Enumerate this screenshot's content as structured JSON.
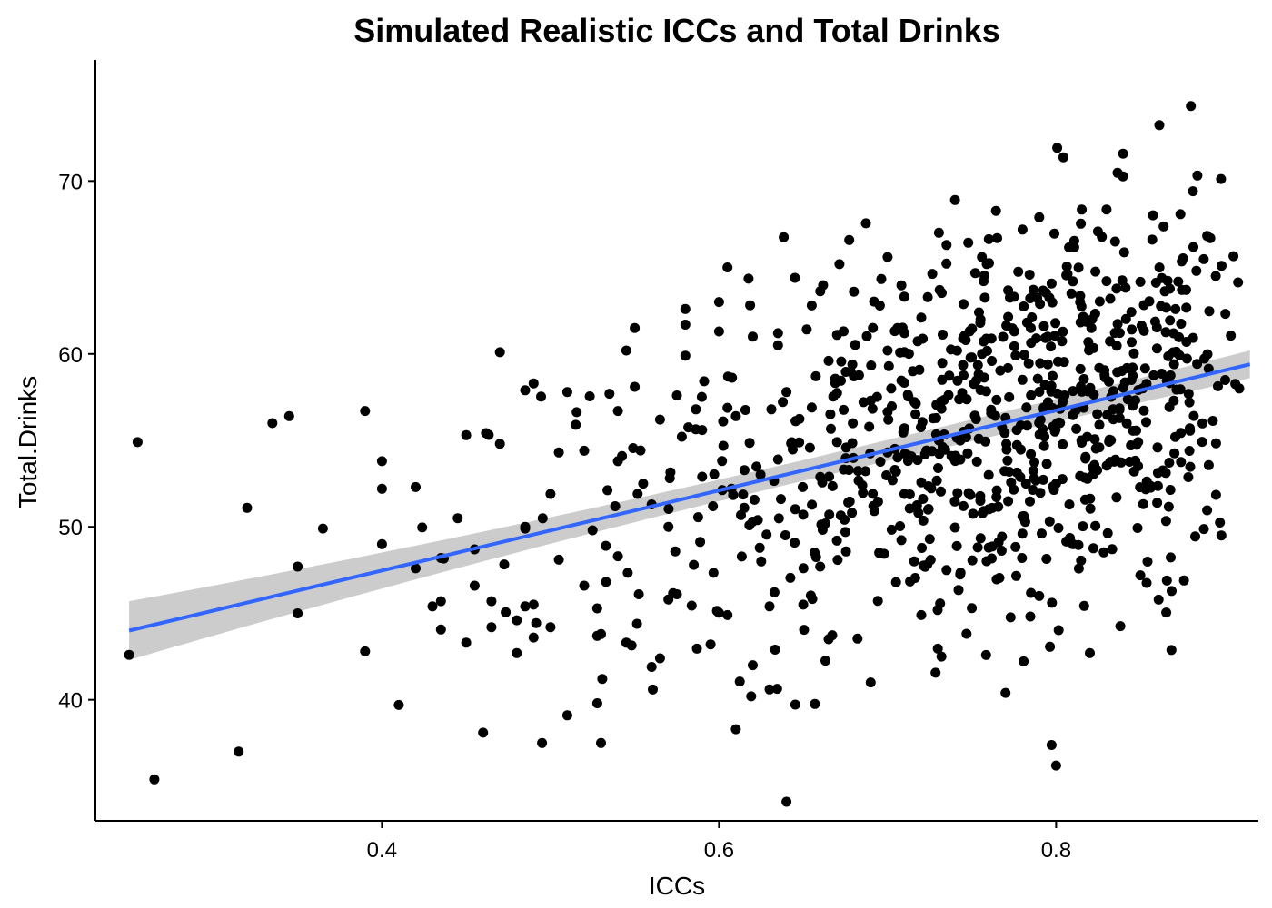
{
  "chart_data": {
    "type": "scatter",
    "title": "Simulated Realistic ICCs and Total Drinks",
    "xlabel": "ICCs",
    "ylabel": "Total.Drinks",
    "xlim": [
      0.23,
      0.92
    ],
    "ylim": [
      33,
      77
    ],
    "x_ticks": [
      {
        "value": 0.4,
        "label": "0.4"
      },
      {
        "value": 0.6,
        "label": "0.6"
      },
      {
        "value": 0.8,
        "label": "0.8"
      }
    ],
    "y_ticks": [
      {
        "value": 40,
        "label": "40"
      },
      {
        "value": 50,
        "label": "50"
      },
      {
        "value": 60,
        "label": "60"
      },
      {
        "value": 70,
        "label": "70"
      }
    ],
    "grid": false,
    "legend": "none",
    "point_color": "#000000",
    "fit_line": {
      "method": "linear regression with 95% CI",
      "color": "#3366ff",
      "band_color": "#cccccc",
      "x": [
        0.25,
        0.915
      ],
      "y": [
        44.0,
        59.4
      ],
      "ci_lower": [
        42.3,
        58.6
      ],
      "ci_upper": [
        45.7,
        60.2
      ],
      "ci_at_center": 0.6
    },
    "n_points": 900,
    "points": [
      [
        0.25,
        42.6
      ],
      [
        0.255,
        54.9
      ],
      [
        0.265,
        35.4
      ],
      [
        0.315,
        37.0
      ],
      [
        0.32,
        51.1
      ],
      [
        0.335,
        56.0
      ],
      [
        0.345,
        56.4
      ],
      [
        0.35,
        45.0
      ],
      [
        0.35,
        47.7
      ],
      [
        0.365,
        49.9
      ],
      [
        0.39,
        56.7
      ],
      [
        0.39,
        42.8
      ],
      [
        0.4,
        52.2
      ],
      [
        0.4,
        53.8
      ],
      [
        0.4,
        49.0
      ],
      [
        0.41,
        39.7
      ],
      [
        0.42,
        47.6
      ],
      [
        0.42,
        52.3
      ],
      [
        0.43,
        45.4
      ],
      [
        0.435,
        45.7
      ],
      [
        0.435,
        48.2
      ],
      [
        0.445,
        50.5
      ],
      [
        0.45,
        55.3
      ],
      [
        0.45,
        43.3
      ],
      [
        0.455,
        46.6
      ],
      [
        0.455,
        48.7
      ],
      [
        0.46,
        38.1
      ],
      [
        0.465,
        45.7
      ],
      [
        0.465,
        44.2
      ],
      [
        0.47,
        60.1
      ],
      [
        0.47,
        54.8
      ],
      [
        0.48,
        42.7
      ],
      [
        0.48,
        44.6
      ],
      [
        0.485,
        45.4
      ],
      [
        0.485,
        57.9
      ],
      [
        0.485,
        49.9
      ],
      [
        0.485,
        50.0
      ],
      [
        0.49,
        43.6
      ],
      [
        0.49,
        58.3
      ],
      [
        0.49,
        45.5
      ],
      [
        0.495,
        37.5
      ],
      [
        0.5,
        51.9
      ],
      [
        0.5,
        44.2
      ],
      [
        0.505,
        48.1
      ],
      [
        0.505,
        54.3
      ],
      [
        0.51,
        39.1
      ],
      [
        0.51,
        57.8
      ],
      [
        0.515,
        55.9
      ],
      [
        0.52,
        46.6
      ],
      [
        0.52,
        54.4
      ],
      [
        0.525,
        49.8
      ],
      [
        0.53,
        43.8
      ],
      [
        0.53,
        37.5
      ],
      [
        0.535,
        57.7
      ],
      [
        0.54,
        53.8
      ],
      [
        0.54,
        48.3
      ],
      [
        0.54,
        56.7
      ],
      [
        0.545,
        43.3
      ],
      [
        0.545,
        60.2
      ],
      [
        0.55,
        61.5
      ],
      [
        0.55,
        58.1
      ],
      [
        0.555,
        52.5
      ],
      [
        0.56,
        51.3
      ],
      [
        0.56,
        41.9
      ],
      [
        0.565,
        56.2
      ],
      [
        0.565,
        42.4
      ],
      [
        0.57,
        45.8
      ],
      [
        0.57,
        50.0
      ],
      [
        0.575,
        57.6
      ],
      [
        0.575,
        46.1
      ],
      [
        0.58,
        62.6
      ],
      [
        0.58,
        59.9
      ],
      [
        0.585,
        47.8
      ],
      [
        0.59,
        55.6
      ],
      [
        0.59,
        52.9
      ],
      [
        0.595,
        43.2
      ],
      [
        0.6,
        63.0
      ],
      [
        0.6,
        61.3
      ],
      [
        0.605,
        44.9
      ],
      [
        0.605,
        65.0
      ],
      [
        0.61,
        56.4
      ],
      [
        0.61,
        38.3
      ],
      [
        0.615,
        51.1
      ],
      [
        0.62,
        61.0
      ],
      [
        0.62,
        50.3
      ],
      [
        0.62,
        42.0
      ],
      [
        0.625,
        48.0
      ],
      [
        0.63,
        45.4
      ],
      [
        0.63,
        40.6
      ],
      [
        0.635,
        60.5
      ],
      [
        0.635,
        53.9
      ],
      [
        0.64,
        34.1
      ],
      [
        0.64,
        57.8
      ],
      [
        0.645,
        64.4
      ],
      [
        0.65,
        45.5
      ],
      [
        0.65,
        50.7
      ],
      [
        0.655,
        62.8
      ],
      [
        0.655,
        56.9
      ],
      [
        0.66,
        47.7
      ],
      [
        0.665,
        43.5
      ],
      [
        0.665,
        59.6
      ],
      [
        0.67,
        54.9
      ],
      [
        0.67,
        61.1
      ],
      [
        0.675,
        49.7
      ],
      [
        0.68,
        63.6
      ],
      [
        0.68,
        58.7
      ],
      [
        0.685,
        52.4
      ],
      [
        0.69,
        41.0
      ],
      [
        0.69,
        57.3
      ],
      [
        0.695,
        48.5
      ],
      [
        0.7,
        60.2
      ],
      [
        0.7,
        54.3
      ],
      [
        0.7,
        65.6
      ],
      [
        0.705,
        46.8
      ],
      [
        0.71,
        51.9
      ],
      [
        0.71,
        55.7
      ],
      [
        0.715,
        59.0
      ],
      [
        0.72,
        44.9
      ],
      [
        0.72,
        62.1
      ],
      [
        0.725,
        49.3
      ],
      [
        0.73,
        53.4
      ],
      [
        0.73,
        57.0
      ],
      [
        0.735,
        66.3
      ],
      [
        0.735,
        47.5
      ],
      [
        0.74,
        68.9
      ],
      [
        0.745,
        51.2
      ],
      [
        0.745,
        55.5
      ],
      [
        0.75,
        59.8
      ],
      [
        0.75,
        45.3
      ],
      [
        0.755,
        61.8
      ],
      [
        0.76,
        53.0
      ],
      [
        0.76,
        48.8
      ],
      [
        0.765,
        66.7
      ],
      [
        0.77,
        56.3
      ],
      [
        0.77,
        40.4
      ],
      [
        0.775,
        63.3
      ],
      [
        0.78,
        50.6
      ],
      [
        0.78,
        58.5
      ],
      [
        0.785,
        54.2
      ],
      [
        0.79,
        46.0
      ],
      [
        0.79,
        67.9
      ],
      [
        0.795,
        61.0
      ],
      [
        0.8,
        52.5
      ],
      [
        0.8,
        36.2
      ],
      [
        0.805,
        57.6
      ],
      [
        0.81,
        49.0
      ],
      [
        0.81,
        64.2
      ],
      [
        0.815,
        55.0
      ],
      [
        0.82,
        42.7
      ],
      [
        0.82,
        60.4
      ]
    ]
  }
}
